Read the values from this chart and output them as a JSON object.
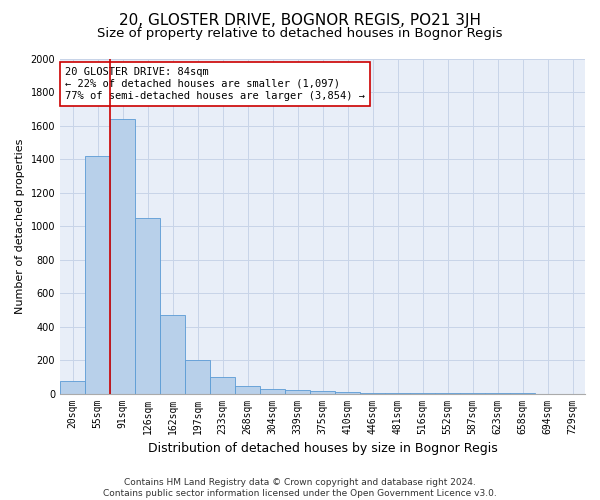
{
  "title": "20, GLOSTER DRIVE, BOGNOR REGIS, PO21 3JH",
  "subtitle": "Size of property relative to detached houses in Bognor Regis",
  "xlabel": "Distribution of detached houses by size in Bognor Regis",
  "ylabel": "Number of detached properties",
  "footer_line1": "Contains HM Land Registry data © Crown copyright and database right 2024.",
  "footer_line2": "Contains public sector information licensed under the Open Government Licence v3.0.",
  "bar_labels": [
    "20sqm",
    "55sqm",
    "91sqm",
    "126sqm",
    "162sqm",
    "197sqm",
    "233sqm",
    "268sqm",
    "304sqm",
    "339sqm",
    "375sqm",
    "410sqm",
    "446sqm",
    "481sqm",
    "516sqm",
    "552sqm",
    "587sqm",
    "623sqm",
    "658sqm",
    "694sqm",
    "729sqm"
  ],
  "bar_values": [
    75,
    1420,
    1640,
    1050,
    470,
    200,
    100,
    45,
    30,
    20,
    15,
    8,
    5,
    4,
    3,
    2,
    2,
    1,
    1,
    0,
    0
  ],
  "bar_color": "#b8d0ea",
  "bar_edge_color": "#5b9bd5",
  "grid_color": "#c8d4e8",
  "background_color": "#e8eef8",
  "vline_color": "#cc0000",
  "vline_pos": 1.5,
  "annotation_text": "20 GLOSTER DRIVE: 84sqm\n← 22% of detached houses are smaller (1,097)\n77% of semi-detached houses are larger (3,854) →",
  "annotation_box_facecolor": "#ffffff",
  "annotation_box_edgecolor": "#cc0000",
  "ylim": [
    0,
    2000
  ],
  "yticks": [
    0,
    200,
    400,
    600,
    800,
    1000,
    1200,
    1400,
    1600,
    1800,
    2000
  ],
  "title_fontsize": 11,
  "subtitle_fontsize": 9.5,
  "xlabel_fontsize": 9,
  "ylabel_fontsize": 8,
  "tick_fontsize": 7,
  "annotation_fontsize": 7.5,
  "footer_fontsize": 6.5
}
